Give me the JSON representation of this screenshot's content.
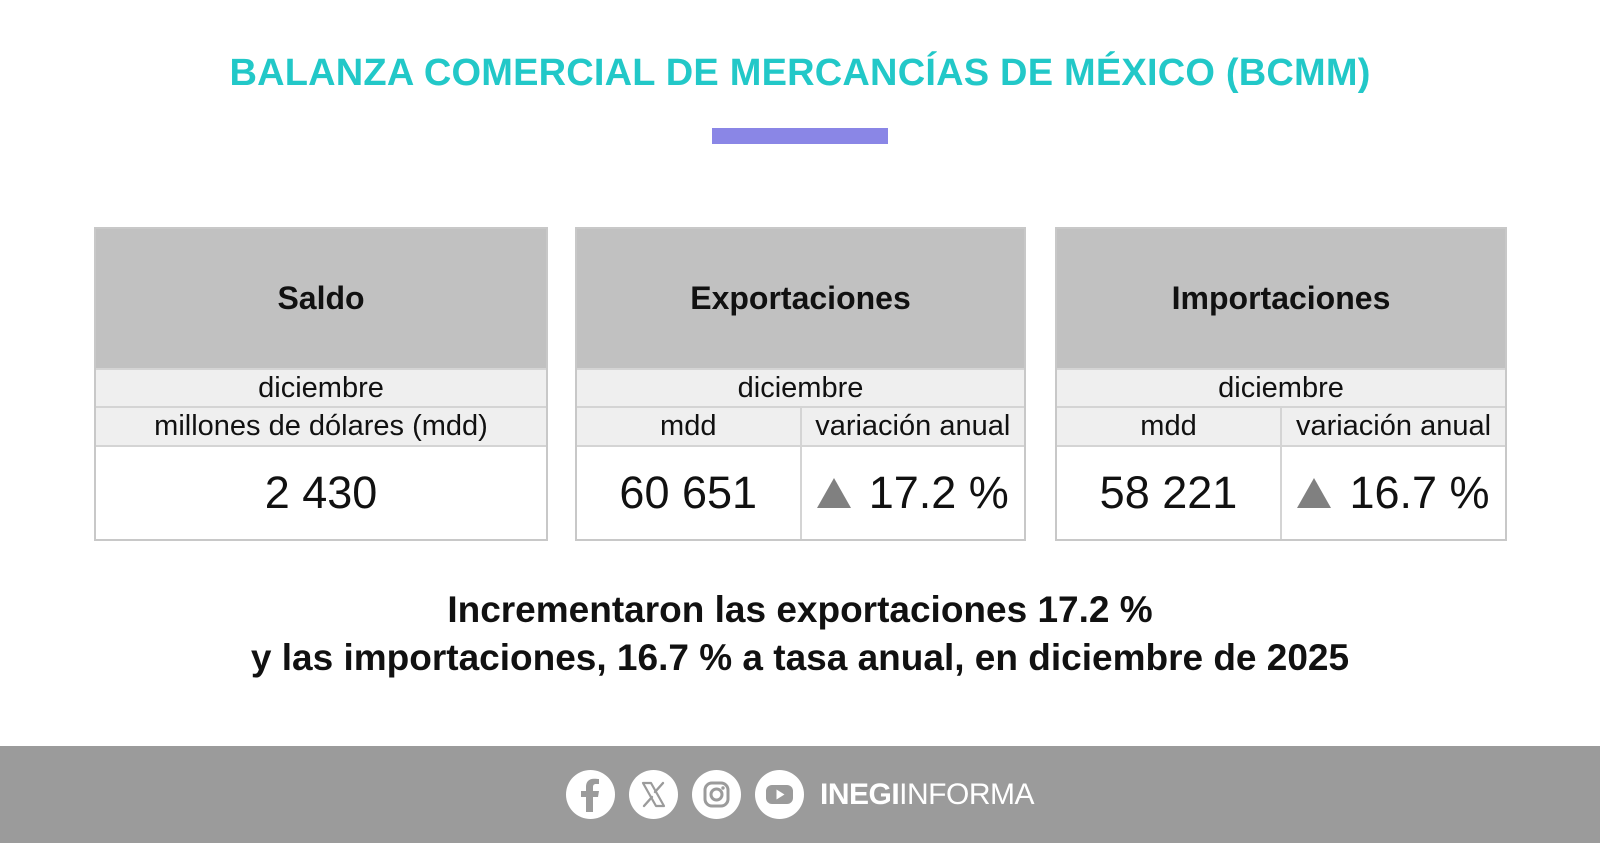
{
  "header": {
    "title": "BALANZA COMERCIAL DE MERCANCÍAS DE MÉXICO (BCMM)",
    "accent_color": "#22c8c8",
    "bar_color": "#8a86e6"
  },
  "cards": [
    {
      "title": "Saldo",
      "period": "diciembre",
      "unit_label": "millones de dólares (mdd)",
      "value": "2 430"
    },
    {
      "title": "Exportaciones",
      "period": "diciembre",
      "col1_label": "mdd",
      "col2_label": "variación anual",
      "value": "60 651",
      "change": "17.2 %",
      "change_direction": "up"
    },
    {
      "title": "Importaciones",
      "period": "diciembre",
      "col1_label": "mdd",
      "col2_label": "variación anual",
      "value": "58 221",
      "change": "16.7 %",
      "change_direction": "up"
    }
  ],
  "summary": {
    "line1": "Incrementaron las exportaciones 17.2 %",
    "line2": "y las importaciones, 16.7 % a tasa anual, en diciembre de 2025"
  },
  "footer": {
    "icons": [
      "facebook-icon",
      "x-icon",
      "instagram-icon",
      "youtube-icon"
    ],
    "brand_bold": "INEGI",
    "brand_light": "INFORMA",
    "background_color": "#9b9b9b"
  }
}
